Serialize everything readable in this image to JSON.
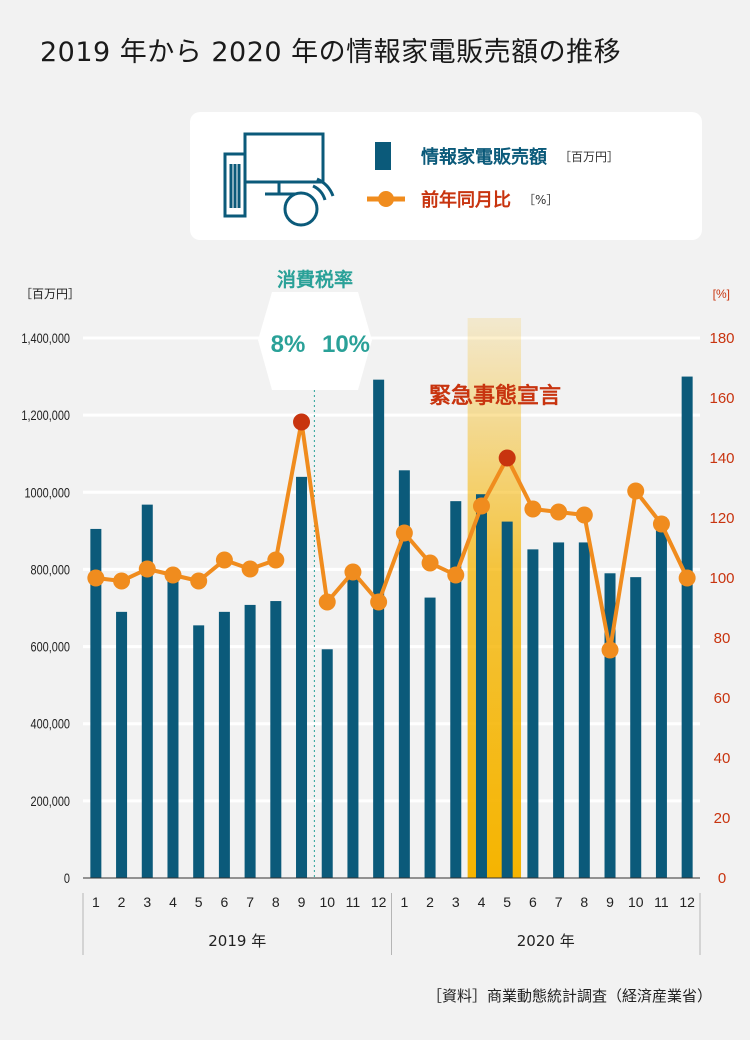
{
  "title": "2019 年から 2020 年の情報家電販売額の推移",
  "legend": {
    "bar_label": "情報家電販売額",
    "bar_unit": "［百万円］",
    "line_label": "前年同月比",
    "line_unit": "［%］",
    "icon": "computer-monitor-speaker-icon"
  },
  "annotations": {
    "tax_label": "消費税率",
    "tax_before": "8%",
    "tax_after": "10%",
    "emergency": "緊急事態宣言"
  },
  "source": "［資料］商業動態統計調査（経済産業省）",
  "colors": {
    "bar": "#0b5a7a",
    "line": "#f08c1e",
    "highlight_line": "#c8340f",
    "teal": "#2aa198",
    "emergency_band": "#f5b400",
    "red_text": "#c8340f"
  },
  "chart_data": {
    "type": "bar",
    "x": [
      "1",
      "2",
      "3",
      "4",
      "5",
      "6",
      "7",
      "8",
      "9",
      "10",
      "11",
      "12",
      "1",
      "2",
      "3",
      "4",
      "5",
      "6",
      "7",
      "8",
      "9",
      "10",
      "11",
      "12"
    ],
    "year_groups": [
      "2019 年",
      "2020 年"
    ],
    "left_axis": {
      "unit": "［百万円］",
      "ylim": [
        0,
        1400000
      ],
      "ticks": [
        "0",
        "200,000",
        "400,000",
        "600,000",
        "800,000",
        "1000,000",
        "1,200,000",
        "1,400,000"
      ],
      "tick_values": [
        0,
        200000,
        400000,
        600000,
        800000,
        1000000,
        1200000,
        1400000
      ]
    },
    "right_axis": {
      "unit": "[%]",
      "ylim": [
        0,
        180
      ],
      "ticks": [
        "0",
        "20",
        "40",
        "60",
        "80",
        "100",
        "120",
        "140",
        "160",
        "180"
      ],
      "tick_values": [
        0,
        20,
        40,
        60,
        80,
        100,
        120,
        140,
        160,
        180
      ]
    },
    "series": [
      {
        "name": "情報家電販売額",
        "type": "bar",
        "axis": "left",
        "values": [
          905000,
          690000,
          968000,
          790000,
          655000,
          690000,
          708000,
          718000,
          1040000,
          593000,
          790000,
          1292000,
          1057000,
          727000,
          977000,
          995000,
          924000,
          852000,
          870000,
          870000,
          790000,
          780000,
          935000,
          1300000
        ]
      },
      {
        "name": "前年同月比",
        "type": "line",
        "axis": "right",
        "values": [
          100,
          99,
          103,
          101,
          99,
          106,
          103,
          106,
          152,
          92,
          102,
          92,
          115,
          105,
          101,
          124,
          140,
          123,
          122,
          121,
          76,
          129,
          118,
          100
        ]
      }
    ],
    "highlighted_points": [
      8,
      16
    ],
    "tax_change_after_index": 9,
    "emergency_indices": [
      15,
      16
    ],
    "grid": true
  }
}
